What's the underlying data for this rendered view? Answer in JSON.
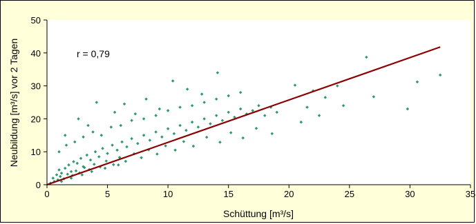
{
  "colors": {
    "background": "#ffffd9",
    "plot_area": "#ffffff",
    "points": "#2e9a6b",
    "trendline": "#8b0000",
    "axes": "#000000"
  },
  "chart_data": {
    "type": "scatter",
    "title": "",
    "xlabel": "Schüttung [m³/s]",
    "ylabel": "Neubildung [m³/s] vor 2 Tagen",
    "xlim": [
      0,
      35
    ],
    "ylim": [
      0,
      50
    ],
    "x_ticks": [
      0,
      5,
      10,
      15,
      20,
      25,
      30,
      35
    ],
    "y_ticks": [
      0,
      10,
      20,
      30,
      40,
      50
    ],
    "grid": false,
    "legend": "none",
    "annotation": "r = 0,79",
    "trendline": {
      "x": [
        0,
        32.5
      ],
      "y": [
        0,
        41.8
      ]
    },
    "series": [
      {
        "name": "",
        "type": "scatter",
        "x": [
          0.5,
          0.8,
          1.0,
          1.2,
          1.5,
          1.8,
          2.0,
          2.2,
          2.5,
          2.8,
          3.0,
          3.3,
          3.6,
          4.0,
          4.3,
          4.6,
          5.0,
          5.4,
          5.8,
          6.2,
          6.6,
          7.0,
          7.5,
          8.0,
          8.5,
          9.0,
          9.5,
          10.0,
          10.5,
          11.0,
          11.5,
          12.0,
          12.5,
          13.0,
          13.5,
          14.0,
          14.5,
          15.0,
          15.5,
          16.0,
          16.5,
          17.0,
          17.5,
          18.0,
          18.5,
          19.0,
          0.3,
          0.6,
          0.9,
          1.1,
          1.4,
          1.7,
          2.1,
          2.4,
          2.7,
          3.1,
          3.5,
          3.9,
          4.4,
          4.9,
          5.5,
          6.0,
          6.5,
          7.2,
          7.8,
          8.4,
          9.1,
          9.8,
          10.6,
          11.3,
          12.1,
          13.2,
          14.3,
          15.2,
          16.2,
          17.3,
          18.6,
          1.0,
          1.6,
          2.3,
          3.0,
          3.8,
          4.5,
          5.3,
          6.1,
          7.0,
          8.0,
          9.0,
          10.0,
          11.0,
          12.0,
          13.0,
          14.0,
          15.0,
          16.0,
          20.5,
          21.0,
          21.5,
          22.0,
          22.5,
          23.0,
          24.0,
          24.5,
          26.4,
          27.0,
          29.8,
          30.6,
          32.5,
          1.5,
          2.6,
          3.4,
          4.1,
          5.6,
          6.4,
          7.3,
          8.2,
          9.3,
          10.4,
          11.6,
          12.8,
          14.1,
          1.2,
          2.0,
          2.9,
          3.7,
          4.8,
          5.9
        ],
        "y": [
          2.0,
          3.0,
          4.5,
          3.5,
          5.0,
          6.0,
          4.0,
          7.0,
          6.5,
          8.0,
          5.5,
          9.0,
          7.5,
          10.0,
          8.5,
          11.0,
          9.5,
          12.0,
          10.5,
          13.0,
          11.5,
          14.0,
          12.5,
          15.0,
          13.5,
          16.0,
          14.5,
          17.0,
          15.5,
          18.0,
          16.5,
          19.0,
          17.5,
          20.0,
          18.5,
          21.0,
          19.5,
          22.0,
          20.5,
          23.0,
          21.5,
          22.5,
          24.0,
          21.0,
          23.5,
          22.0,
          0.5,
          1.0,
          1.5,
          2.5,
          1.8,
          3.2,
          2.8,
          4.2,
          3.6,
          5.2,
          4.6,
          6.2,
          5.4,
          7.2,
          6.1,
          8.3,
          7.1,
          9.4,
          8.2,
          10.6,
          9.3,
          11.8,
          10.5,
          13.1,
          11.7,
          14.4,
          12.9,
          15.8,
          14.2,
          17.1,
          15.5,
          10.0,
          12.0,
          13.0,
          14.5,
          16.0,
          15.0,
          17.5,
          18.0,
          19.5,
          20.0,
          21.0,
          22.5,
          23.5,
          24.0,
          25.0,
          26.0,
          27.0,
          28.0,
          30.2,
          19.0,
          23.5,
          28.5,
          21.0,
          26.5,
          30.0,
          24.0,
          38.7,
          26.7,
          23.0,
          31.2,
          33.3,
          15.0,
          20.0,
          18.0,
          25.0,
          22.0,
          24.5,
          21.5,
          26.0,
          23.0,
          31.5,
          29.0,
          27.5,
          34.0,
          1.0,
          2.0,
          3.0,
          4.0,
          5.0,
          6.0
        ]
      }
    ]
  }
}
